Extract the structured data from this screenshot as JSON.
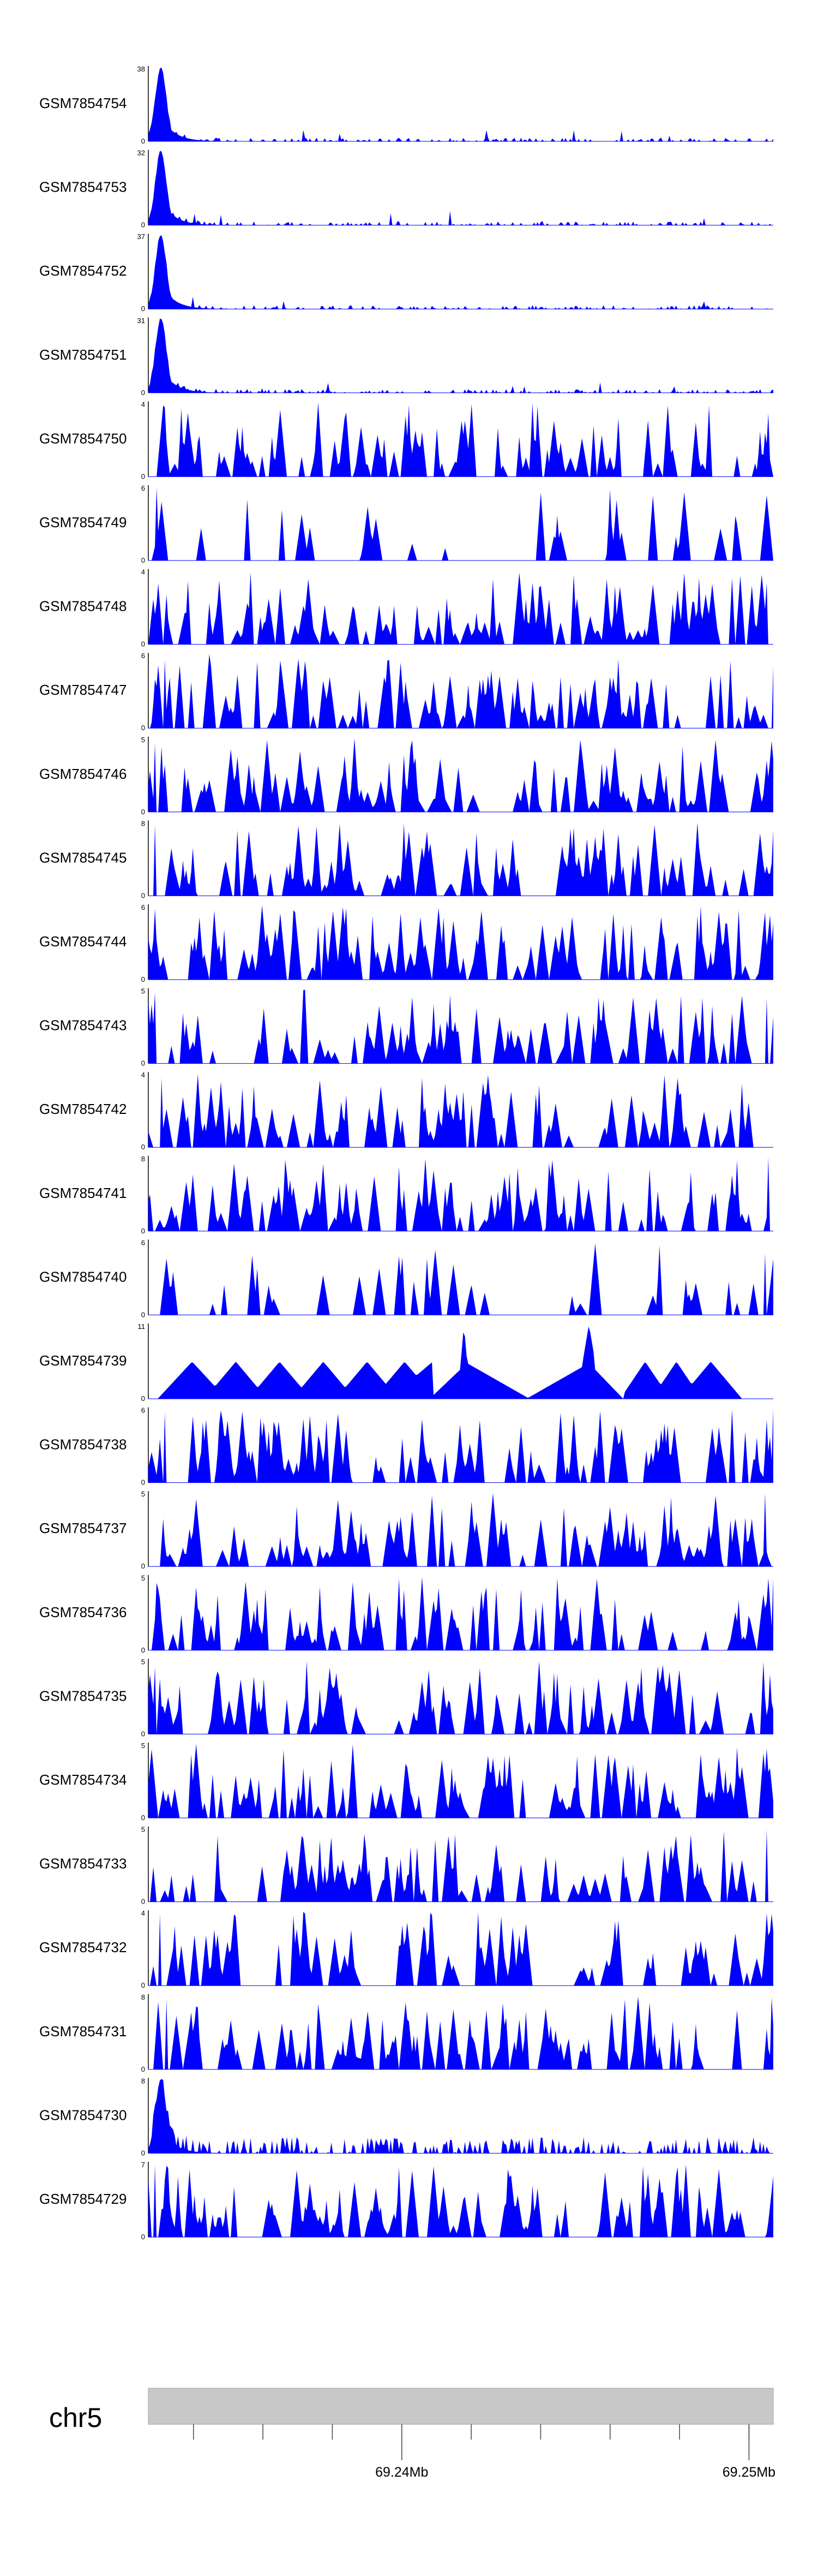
{
  "chart_data": {
    "type": "area",
    "description_title": "",
    "fill_color": "#0000ff",
    "axis_color": "#000000",
    "ideogram_color": "#c8c8c8",
    "tracks": [
      {
        "name": "GSM7854754",
        "ymax": 38,
        "ymin": 0,
        "profile": "peak"
      },
      {
        "name": "GSM7854753",
        "ymax": 32,
        "ymin": 0,
        "profile": "peak"
      },
      {
        "name": "GSM7854752",
        "ymax": 37,
        "ymin": 0,
        "profile": "peak"
      },
      {
        "name": "GSM7854751",
        "ymax": 31,
        "ymin": 0,
        "profile": "peak"
      },
      {
        "name": "GSM7854750",
        "ymax": 4,
        "ymin": 0,
        "profile": "dense"
      },
      {
        "name": "GSM7854749",
        "ymax": 6,
        "ymin": 0,
        "profile": "sparse"
      },
      {
        "name": "GSM7854748",
        "ymax": 4,
        "ymin": 0,
        "profile": "dense"
      },
      {
        "name": "GSM7854747",
        "ymax": 6,
        "ymin": 0,
        "profile": "dense"
      },
      {
        "name": "GSM7854746",
        "ymax": 5,
        "ymin": 0,
        "profile": "dense"
      },
      {
        "name": "GSM7854745",
        "ymax": 8,
        "ymin": 0,
        "profile": "dense"
      },
      {
        "name": "GSM7854744",
        "ymax": 6,
        "ymin": 0,
        "profile": "dense"
      },
      {
        "name": "GSM7854743",
        "ymax": 5,
        "ymin": 0,
        "profile": "dense"
      },
      {
        "name": "GSM7854742",
        "ymax": 4,
        "ymin": 0,
        "profile": "dense"
      },
      {
        "name": "GSM7854741",
        "ymax": 8,
        "ymin": 0,
        "profile": "dense"
      },
      {
        "name": "GSM7854740",
        "ymax": 6,
        "ymin": 0,
        "profile": "sparse"
      },
      {
        "name": "GSM7854739",
        "ymax": 11,
        "ymin": 0,
        "profile": "triangles"
      },
      {
        "name": "GSM7854738",
        "ymax": 6,
        "ymin": 0,
        "profile": "dense"
      },
      {
        "name": "GSM7854737",
        "ymax": 5,
        "ymin": 0,
        "profile": "dense"
      },
      {
        "name": "GSM7854736",
        "ymax": 5,
        "ymin": 0,
        "profile": "dense"
      },
      {
        "name": "GSM7854735",
        "ymax": 5,
        "ymin": 0,
        "profile": "dense"
      },
      {
        "name": "GSM7854734",
        "ymax": 5,
        "ymin": 0,
        "profile": "dense"
      },
      {
        "name": "GSM7854733",
        "ymax": 5,
        "ymin": 0,
        "profile": "dense"
      },
      {
        "name": "GSM7854732",
        "ymax": 4,
        "ymin": 0,
        "profile": "dense"
      },
      {
        "name": "GSM7854731",
        "ymax": 8,
        "ymin": 0,
        "profile": "dense"
      },
      {
        "name": "GSM7854730",
        "ymax": 8,
        "ymin": 0,
        "profile": "peak_small"
      },
      {
        "name": "GSM7854729",
        "ymax": 7,
        "ymin": 0,
        "profile": "dense"
      }
    ],
    "chromosome": "chr5",
    "x_axis": {
      "unit": "Mb",
      "range": [
        69.2327,
        69.2507
      ],
      "labeled_ticks": [
        {
          "value": 69.24,
          "label": "69.24Mb"
        },
        {
          "value": 69.25,
          "label": "69.25Mb"
        }
      ],
      "minor_ticks": [
        69.234,
        69.236,
        69.238,
        69.24,
        69.242,
        69.244,
        69.246,
        69.248,
        69.25
      ]
    }
  }
}
